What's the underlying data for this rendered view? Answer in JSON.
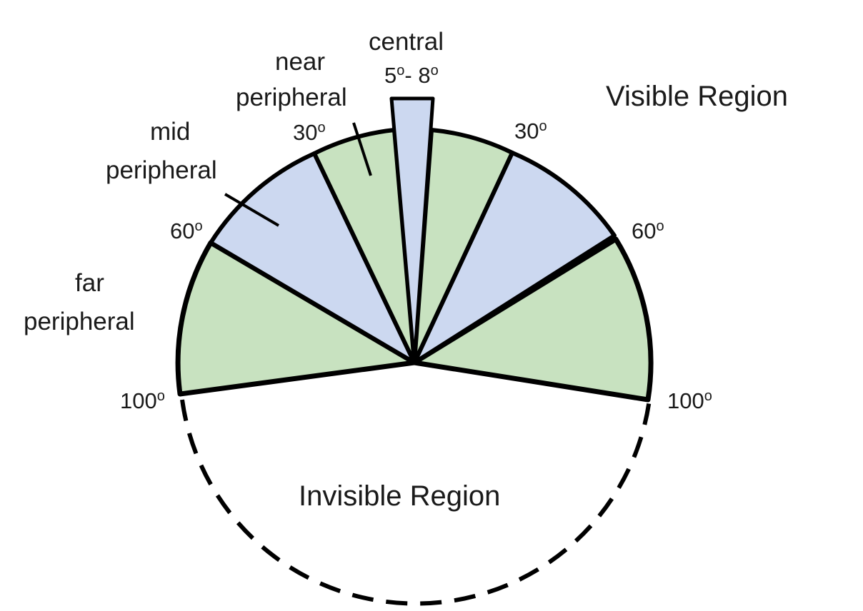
{
  "regions": {
    "visible": "Visible Region",
    "invisible": "Invisible Region"
  },
  "zones": {
    "central": {
      "line1": "central",
      "angle_from": "5",
      "dash": "- ",
      "angle_to": "8",
      "deg": "o"
    },
    "near": {
      "line1": "near",
      "line2": "peripheral"
    },
    "mid": {
      "line1": "mid",
      "line2": "peripheral"
    },
    "far": {
      "line1": "far",
      "line2": "peripheral"
    }
  },
  "angles": {
    "left_30": {
      "value": "30",
      "deg": "o"
    },
    "left_60": {
      "value": "60",
      "deg": "o"
    },
    "left_100": {
      "value": "100",
      "deg": "o"
    },
    "right_30": {
      "value": "30",
      "deg": "o"
    },
    "right_60": {
      "value": "60",
      "deg": "o"
    },
    "right_100": {
      "value": "100",
      "deg": "o"
    }
  },
  "colors": {
    "green": "#c8e2c0",
    "blue": "#ccd8f0",
    "outline": "#000000"
  }
}
